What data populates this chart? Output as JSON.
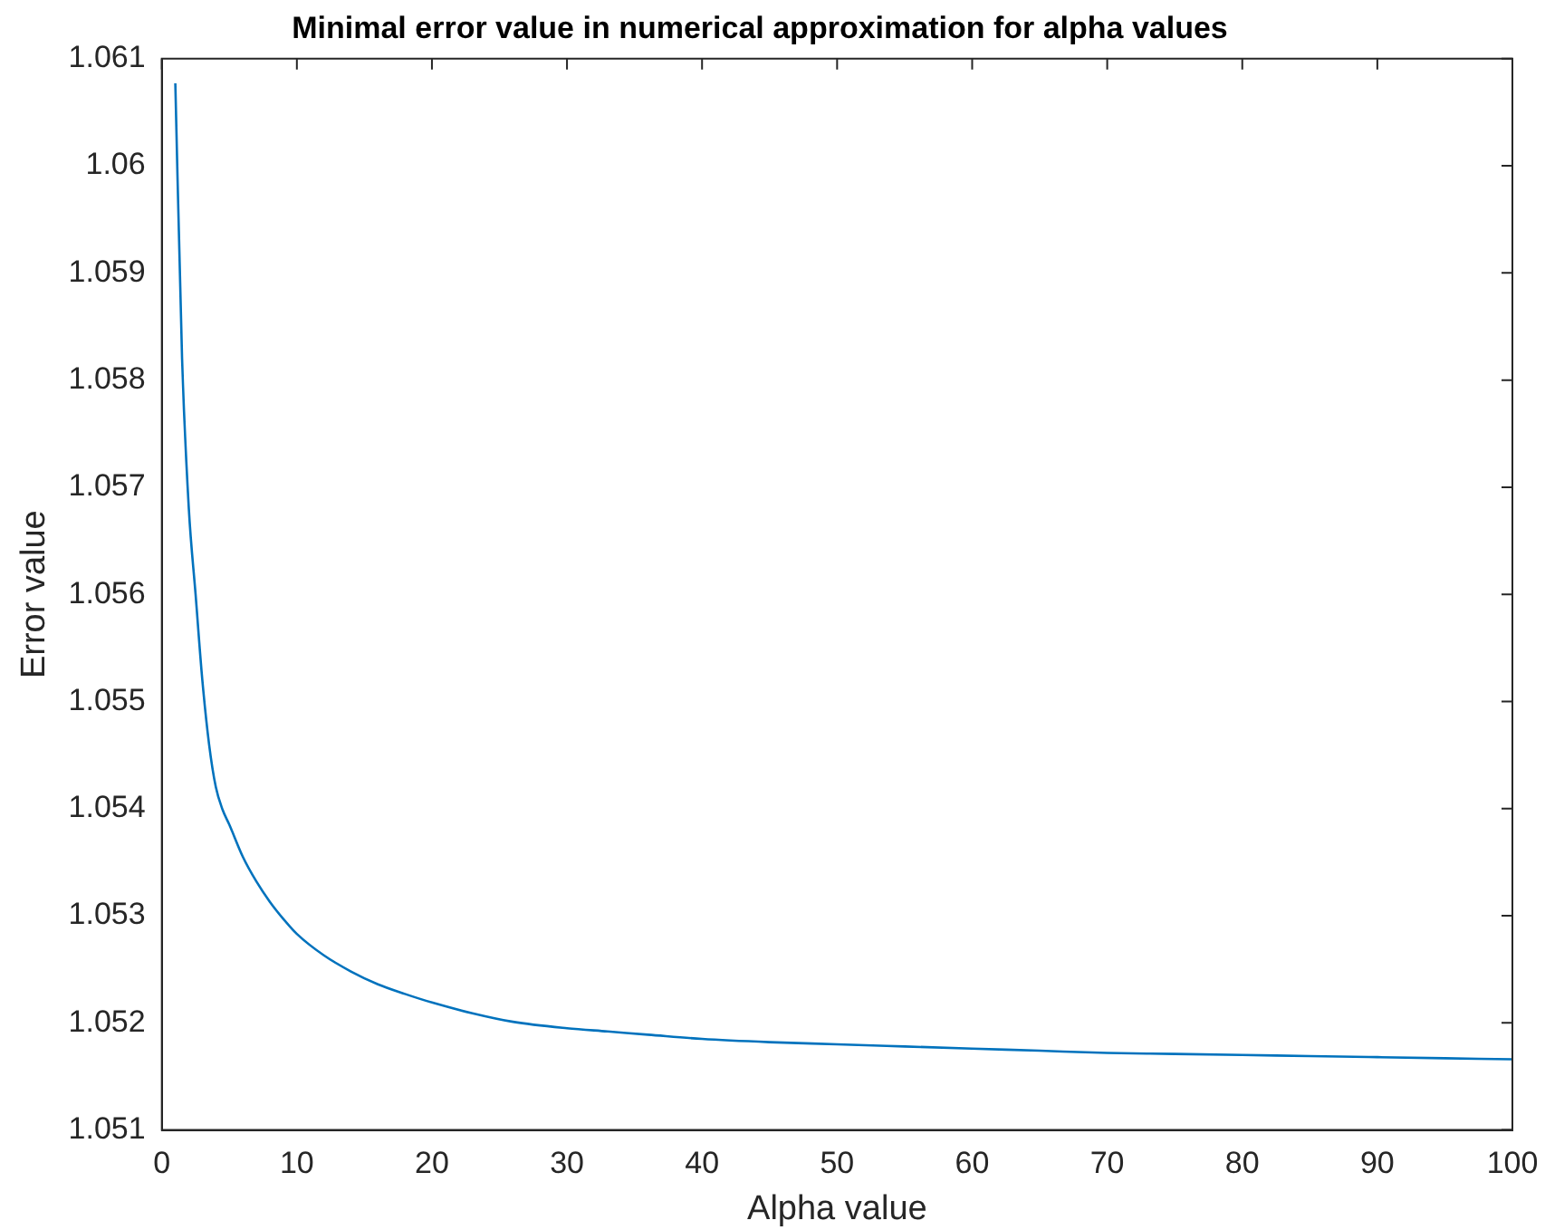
{
  "chart_data": {
    "type": "line",
    "title": "Minimal error value in numerical approximation for alpha values",
    "xlabel": "Alpha value",
    "ylabel": "Error value",
    "x": [
      1,
      1.5,
      2,
      2.5,
      3,
      3.5,
      4,
      4.5,
      5,
      6,
      7,
      8,
      9,
      10,
      12,
      14,
      16,
      18,
      20,
      23,
      26,
      30,
      33,
      36,
      40,
      45,
      50,
      55,
      60,
      65,
      70,
      75,
      80,
      85,
      90,
      95,
      100
    ],
    "series": [
      {
        "color": "#0072bd",
        "values": [
          1.06077,
          1.0582,
          1.0568,
          1.056,
          1.0552,
          1.0546,
          1.0542,
          1.05399,
          1.05385,
          1.05355,
          1.05332,
          1.05313,
          1.05297,
          1.05283,
          1.05263,
          1.05248,
          1.05236,
          1.05227,
          1.05219,
          1.05209,
          1.05201,
          1.05195,
          1.05192,
          1.05189,
          1.05185,
          1.05182,
          1.0518,
          1.05178,
          1.05176,
          1.05174,
          1.05172,
          1.05171,
          1.0517,
          1.05169,
          1.05168,
          1.05167,
          1.05166
        ]
      }
    ],
    "xlim": [
      0,
      100
    ],
    "xticks": [
      0,
      10,
      20,
      30,
      40,
      50,
      60,
      70,
      80,
      90,
      100
    ],
    "ylim": [
      1.051,
      1.061
    ],
    "yticks": [
      1.051,
      1.052,
      1.053,
      1.054,
      1.055,
      1.056,
      1.057,
      1.058,
      1.059,
      1.06,
      1.061
    ],
    "grid": false,
    "legend": false,
    "marker": "none",
    "line_style": "solid"
  }
}
